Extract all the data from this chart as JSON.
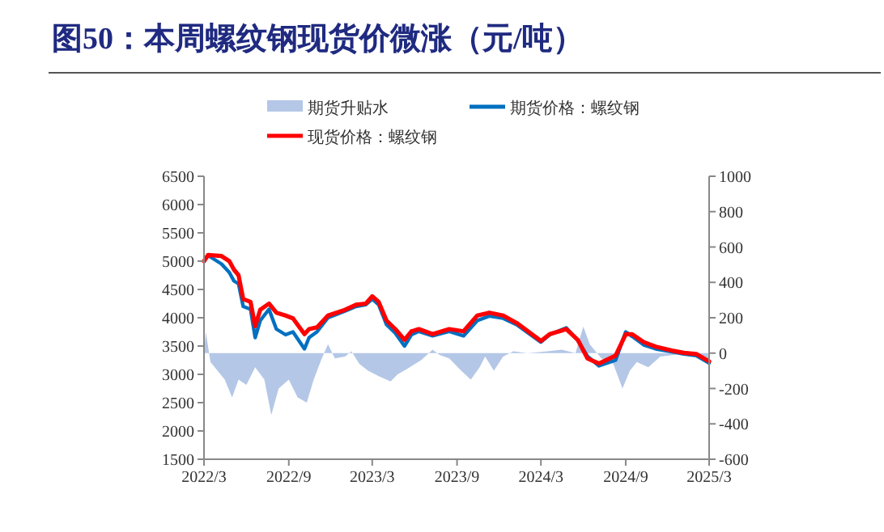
{
  "chart_data": {
    "type": "line",
    "title": "图50：本周螺纹钢现货价微涨（元/吨）",
    "legend": "top",
    "xlim": [
      "2022-03-01",
      "2025-03-01"
    ],
    "xticks": [
      {
        "value": "2022-03-01",
        "label": "2022/3"
      },
      {
        "value": "2022-09-01",
        "label": "2022/9"
      },
      {
        "value": "2023-03-01",
        "label": "2023/3"
      },
      {
        "value": "2023-09-01",
        "label": "2023/9"
      },
      {
        "value": "2024-03-01",
        "label": "2024/3"
      },
      {
        "value": "2024-09-01",
        "label": "2024/9"
      },
      {
        "value": "2025-03-01",
        "label": "2025/3"
      }
    ],
    "ylim": [
      1500,
      6500
    ],
    "yticks": [
      1500,
      2000,
      2500,
      3000,
      3500,
      4000,
      4500,
      5000,
      5500,
      6000,
      6500
    ],
    "y2lim": [
      -600,
      1000
    ],
    "y2ticks": [
      -600,
      -400,
      -200,
      0,
      200,
      400,
      600,
      800,
      1000
    ],
    "series": [
      {
        "name": "期货升贴水",
        "type": "area",
        "axis": "y2",
        "color": "#b4c7e7",
        "x": [
          "2022-03-01",
          "2022-03-05",
          "2022-03-15",
          "2022-04-15",
          "2022-05-01",
          "2022-05-15",
          "2022-06-01",
          "2022-06-20",
          "2022-07-10",
          "2022-07-25",
          "2022-08-10",
          "2022-09-01",
          "2022-09-20",
          "2022-10-10",
          "2022-10-25",
          "2022-11-10",
          "2022-11-25",
          "2022-12-10",
          "2023-01-01",
          "2023-01-15",
          "2023-02-01",
          "2023-02-20",
          "2023-03-15",
          "2023-04-10",
          "2023-04-25",
          "2023-05-15",
          "2023-06-15",
          "2023-07-10",
          "2023-07-25",
          "2023-08-15",
          "2023-09-10",
          "2023-10-01",
          "2023-10-20",
          "2023-11-01",
          "2023-11-20",
          "2023-12-10",
          "2024-01-01",
          "2024-02-01",
          "2024-03-15",
          "2024-04-15",
          "2024-05-15",
          "2024-06-01",
          "2024-06-15",
          "2024-07-10",
          "2024-08-05",
          "2024-08-25",
          "2024-09-10",
          "2024-09-25",
          "2024-10-20",
          "2024-11-15",
          "2024-12-15",
          "2025-01-15",
          "2025-02-15",
          "2025-03-01"
        ],
        "values": [
          0,
          120,
          -50,
          -150,
          -250,
          -150,
          -180,
          -80,
          -150,
          -350,
          -200,
          -150,
          -250,
          -280,
          -150,
          -40,
          50,
          -30,
          -20,
          10,
          -60,
          -100,
          -130,
          -160,
          -120,
          -90,
          -40,
          20,
          -10,
          -30,
          -100,
          -150,
          -80,
          -20,
          -100,
          -20,
          10,
          0,
          10,
          20,
          0,
          150,
          50,
          -30,
          -60,
          -200,
          -100,
          -50,
          -80,
          -20,
          -10,
          10,
          -20,
          -40
        ]
      },
      {
        "name": "期货价格：螺纹钢",
        "type": "line",
        "color": "#0070c0",
        "x": [
          "2022-03-01",
          "2022-03-10",
          "2022-04-08",
          "2022-04-25",
          "2022-05-05",
          "2022-05-15",
          "2022-05-25",
          "2022-06-10",
          "2022-06-20",
          "2022-07-01",
          "2022-07-20",
          "2022-08-05",
          "2022-08-25",
          "2022-09-10",
          "2022-10-05",
          "2022-10-15",
          "2022-11-01",
          "2022-11-25",
          "2023-01-01",
          "2023-01-25",
          "2023-02-15",
          "2023-03-01",
          "2023-03-15",
          "2023-04-01",
          "2023-04-20",
          "2023-05-10",
          "2023-05-25",
          "2023-06-10",
          "2023-07-10",
          "2023-08-15",
          "2023-09-15",
          "2023-10-15",
          "2023-11-10",
          "2023-12-10",
          "2024-01-10",
          "2024-03-01",
          "2024-03-20",
          "2024-04-10",
          "2024-04-25",
          "2024-05-20",
          "2024-06-10",
          "2024-07-05",
          "2024-08-10",
          "2024-09-01",
          "2024-09-15",
          "2024-10-10",
          "2024-11-05",
          "2024-12-10",
          "2025-01-05",
          "2025-02-01",
          "2025-03-01"
        ],
        "values": [
          5000,
          5100,
          4950,
          4800,
          4650,
          4600,
          4200,
          4150,
          3650,
          3950,
          4150,
          3800,
          3700,
          3750,
          3450,
          3650,
          3750,
          4000,
          4120,
          4200,
          4230,
          4330,
          4230,
          3880,
          3730,
          3500,
          3700,
          3760,
          3680,
          3760,
          3680,
          3950,
          4030,
          3990,
          3870,
          3570,
          3700,
          3770,
          3820,
          3600,
          3320,
          3150,
          3250,
          3750,
          3670,
          3520,
          3450,
          3400,
          3360,
          3330,
          3200
        ]
      },
      {
        "name": "现货价格：螺纹钢",
        "type": "line",
        "color": "#ff0000",
        "x": [
          "2022-03-01",
          "2022-03-10",
          "2022-04-08",
          "2022-04-25",
          "2022-05-05",
          "2022-05-15",
          "2022-05-25",
          "2022-06-10",
          "2022-06-20",
          "2022-07-01",
          "2022-07-20",
          "2022-08-05",
          "2022-08-25",
          "2022-09-10",
          "2022-10-05",
          "2022-10-15",
          "2022-11-01",
          "2022-11-25",
          "2023-01-01",
          "2023-01-25",
          "2023-02-15",
          "2023-03-01",
          "2023-03-15",
          "2023-04-01",
          "2023-04-20",
          "2023-05-10",
          "2023-05-25",
          "2023-06-10",
          "2023-07-10",
          "2023-08-15",
          "2023-09-15",
          "2023-10-15",
          "2023-11-10",
          "2023-12-10",
          "2024-01-10",
          "2024-03-01",
          "2024-03-20",
          "2024-04-10",
          "2024-04-25",
          "2024-05-20",
          "2024-06-10",
          "2024-07-05",
          "2024-08-10",
          "2024-09-01",
          "2024-09-15",
          "2024-10-10",
          "2024-11-05",
          "2024-12-10",
          "2025-01-05",
          "2025-02-01",
          "2025-03-01"
        ],
        "values": [
          5000,
          5110,
          5090,
          5000,
          4850,
          4750,
          4330,
          4280,
          3850,
          4140,
          4250,
          4090,
          4040,
          3990,
          3710,
          3800,
          3830,
          4040,
          4140,
          4230,
          4250,
          4380,
          4280,
          3950,
          3800,
          3610,
          3760,
          3800,
          3710,
          3800,
          3760,
          4040,
          4090,
          4040,
          3900,
          3590,
          3710,
          3760,
          3800,
          3610,
          3280,
          3190,
          3330,
          3710,
          3710,
          3570,
          3490,
          3420,
          3380,
          3360,
          3230
        ]
      }
    ]
  }
}
